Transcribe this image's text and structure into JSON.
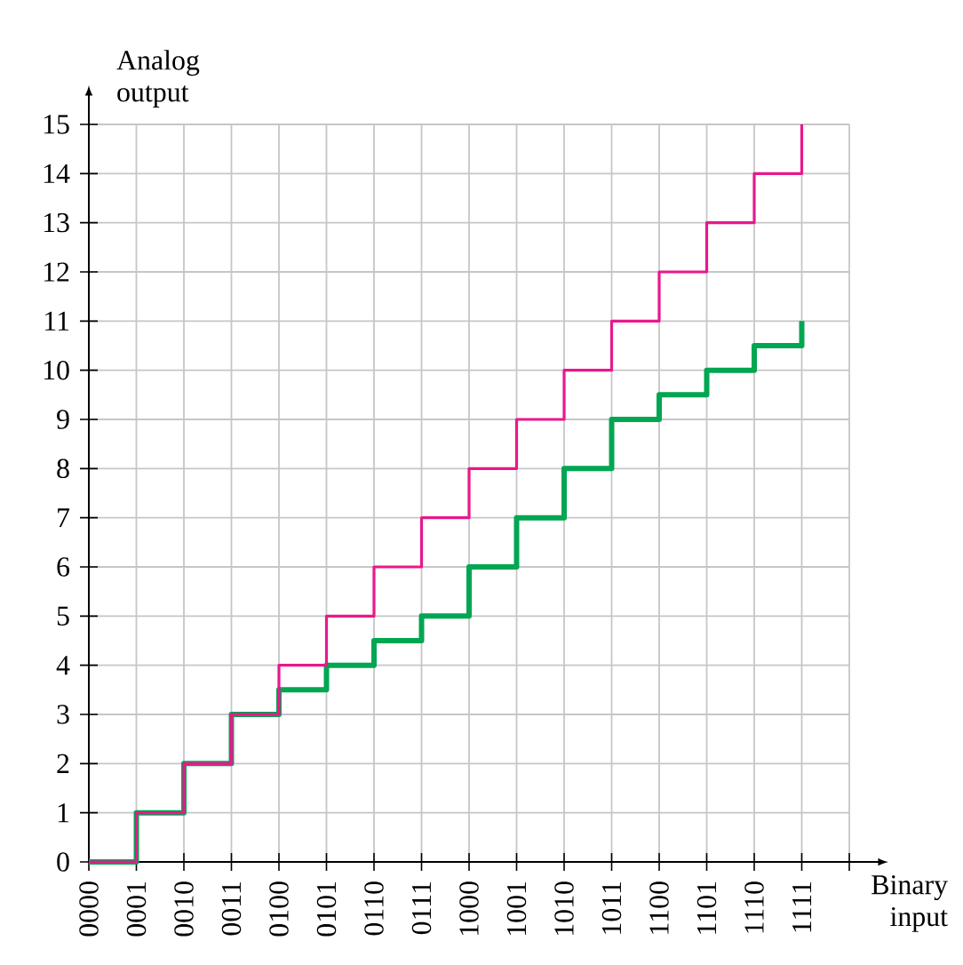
{
  "chart_data": {
    "type": "step",
    "xlabel": "Binary input",
    "ylabel": "Analog output",
    "categories": [
      "0000",
      "0001",
      "0010",
      "0011",
      "0100",
      "0101",
      "0110",
      "0111",
      "1000",
      "1001",
      "1010",
      "1011",
      "1100",
      "1101",
      "1110",
      "1111"
    ],
    "series": [
      {
        "color": "#e8188c",
        "values": [
          0,
          1,
          2,
          3,
          4,
          5,
          6,
          7,
          8,
          9,
          10,
          11,
          12,
          13,
          14,
          15
        ]
      },
      {
        "color": "#00a651",
        "values": [
          0,
          1,
          2,
          3,
          3.5,
          4,
          4.5,
          5,
          6,
          7,
          8,
          9,
          9.5,
          10,
          10.5,
          11
        ]
      }
    ],
    "ylim": [
      0,
      15
    ],
    "yticks": [
      0,
      1,
      2,
      3,
      4,
      5,
      6,
      7,
      8,
      9,
      10,
      11,
      12,
      13,
      14,
      15
    ],
    "grid": true
  }
}
